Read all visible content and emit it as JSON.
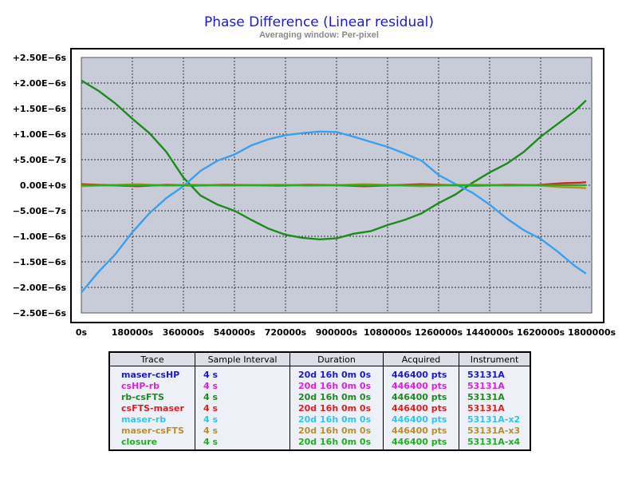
{
  "chart_data": {
    "type": "line",
    "title": "Phase Difference (Linear residual)",
    "subtitle": "Averaging window: Per-pixel",
    "xlabel": "",
    "ylabel": "",
    "xlim": [
      0,
      1800000
    ],
    "ylim": [
      -2.5e-06,
      2.5e-06
    ],
    "x_ticks": [
      0,
      180000,
      360000,
      540000,
      720000,
      900000,
      1080000,
      1260000,
      1440000,
      1620000,
      1800000
    ],
    "x_tick_labels": [
      "0s",
      "180000s",
      "360000s",
      "540000s",
      "720000s",
      "900000s",
      "1080000s",
      "1260000s",
      "1440000s",
      "1620000s",
      "1800000s"
    ],
    "y_ticks": [
      2.5e-06,
      2e-06,
      1.5e-06,
      1e-06,
      5e-07,
      0,
      -5e-07,
      -1e-06,
      -1.5e-06,
      -2e-06,
      -2.5e-06
    ],
    "y_tick_labels": [
      "+2.50E−6s",
      "+2.00E−6s",
      "+1.50E−6s",
      "+1.00E−6s",
      "+5.00E−7s",
      "0.00E+0s",
      "−5.00E−7s",
      "−1.00E−6s",
      "−1.50E−6s",
      "−2.00E−6s",
      "−2.50E−6s"
    ],
    "y_tick_colors": [
      "#000000",
      "#000000",
      "#000000",
      "#000000",
      "#000000",
      "#1a1ad0",
      "#000000",
      "#000000",
      "#000000",
      "#000000",
      "#000000"
    ],
    "grid": true,
    "plot_background": "#c8ccd8",
    "series": [
      {
        "name": "rb-csFTS",
        "color": "#1f8a1f",
        "x": [
          0,
          60000,
          120000,
          180000,
          240000,
          300000,
          360000,
          420000,
          480000,
          540000,
          600000,
          660000,
          720000,
          780000,
          840000,
          900000,
          960000,
          1020000,
          1080000,
          1140000,
          1200000,
          1260000,
          1320000,
          1380000,
          1440000,
          1500000,
          1560000,
          1620000,
          1680000,
          1740000,
          1780000
        ],
        "y": [
          2.05e-06,
          1.85e-06,
          1.6e-06,
          1.3e-06,
          1.02e-06,
          6.5e-07,
          1.5e-07,
          -2e-07,
          -3.8e-07,
          -5e-07,
          -6.8e-07,
          -8.5e-07,
          -9.7e-07,
          -1.03e-06,
          -1.06e-06,
          -1.04e-06,
          -9.5e-07,
          -9e-07,
          -7.8e-07,
          -6.8e-07,
          -5.5e-07,
          -3.5e-07,
          -1.8e-07,
          5e-08,
          2.5e-07,
          4.2e-07,
          6.5e-07,
          9.5e-07,
          1.2e-06,
          1.45e-06,
          1.66e-06
        ]
      },
      {
        "name": "maser-rb",
        "color": "#3aa0ee",
        "x": [
          0,
          60000,
          120000,
          180000,
          240000,
          300000,
          360000,
          420000,
          480000,
          540000,
          600000,
          660000,
          720000,
          780000,
          840000,
          900000,
          960000,
          1020000,
          1080000,
          1140000,
          1200000,
          1260000,
          1320000,
          1380000,
          1440000,
          1500000,
          1560000,
          1620000,
          1680000,
          1740000,
          1780000
        ],
        "y": [
          -2.1e-06,
          -1.7e-06,
          -1.35e-06,
          -9.2e-07,
          -5.5e-07,
          -2.5e-07,
          -2e-08,
          2.8e-07,
          4.8e-07,
          6e-07,
          7.8e-07,
          9e-07,
          9.8e-07,
          1.02e-06,
          1.05e-06,
          1.04e-06,
          9.5e-07,
          8.5e-07,
          7.5e-07,
          6.2e-07,
          4.8e-07,
          2e-07,
          2e-08,
          -1.5e-07,
          -3.8e-07,
          -6.5e-07,
          -8.8e-07,
          -1.05e-06,
          -1.3e-06,
          -1.58e-06,
          -1.73e-06
        ]
      },
      {
        "name": "csFTS-maser",
        "color": "#e02020",
        "x": [
          0,
          100000,
          200000,
          300000,
          400000,
          500000,
          600000,
          700000,
          800000,
          900000,
          1000000,
          1100000,
          1200000,
          1300000,
          1400000,
          1500000,
          1600000,
          1700000,
          1760000,
          1780000
        ],
        "y": [
          2e-08,
          0.0,
          -2e-08,
          1e-08,
          -1e-08,
          1e-08,
          0.0,
          -1e-08,
          1e-08,
          0.0,
          -2e-08,
          0.0,
          2e-08,
          0.0,
          -1e-08,
          1e-08,
          0.0,
          4e-08,
          5e-08,
          6e-08
        ]
      },
      {
        "name": "maser-csFTS",
        "color": "#b89030",
        "x": [
          0,
          100000,
          200000,
          300000,
          400000,
          500000,
          600000,
          700000,
          800000,
          900000,
          1000000,
          1100000,
          1200000,
          1300000,
          1400000,
          1500000,
          1600000,
          1700000,
          1760000,
          1780000
        ],
        "y": [
          -2e-08,
          0.0,
          2e-08,
          -1e-08,
          1e-08,
          -1e-08,
          0.0,
          1e-08,
          -1e-08,
          0.0,
          2e-08,
          0.0,
          -2e-08,
          0.0,
          1e-08,
          -1e-08,
          0.0,
          -4e-08,
          -5e-08,
          -6e-08
        ]
      },
      {
        "name": "closure",
        "color": "#22b022",
        "x": [
          0,
          200000,
          400000,
          600000,
          800000,
          1000000,
          1200000,
          1400000,
          1600000,
          1780000
        ],
        "y": [
          0,
          0,
          0,
          0,
          0,
          0,
          0,
          0,
          0,
          0
        ]
      }
    ]
  },
  "legend": {
    "headers": [
      "Trace",
      "Sample Interval",
      "Duration",
      "Acquired",
      "Instrument"
    ],
    "rows": [
      {
        "color": "#1a1ad0",
        "cells": [
          "maser-csHP",
          "4 s",
          "20d 16h 0m 0s",
          "446400 pts",
          "53131A"
        ]
      },
      {
        "color": "#e020e0",
        "cells": [
          "csHP-rb",
          "4 s",
          "20d 16h 0m 0s",
          "446400 pts",
          "53131A"
        ]
      },
      {
        "color": "#1f8a1f",
        "cells": [
          "rb-csFTS",
          "4 s",
          "20d 16h 0m 0s",
          "446400 pts",
          "53131A"
        ]
      },
      {
        "color": "#e02020",
        "cells": [
          "csFTS-maser",
          "4 s",
          "20d 16h 0m 0s",
          "446400 pts",
          "53131A"
        ]
      },
      {
        "color": "#30c8e8",
        "cells": [
          "maser-rb",
          "4 s",
          "20d 16h 0m 0s",
          "446400 pts",
          "53131A-x2"
        ]
      },
      {
        "color": "#b89030",
        "cells": [
          "maser-csFTS",
          "4 s",
          "20d 16h 0m 0s",
          "446400 pts",
          "53131A-x3"
        ]
      },
      {
        "color": "#22b022",
        "cells": [
          "closure",
          "4 s",
          "20d 16h 0m 0s",
          "446400 pts",
          "53131A-x4"
        ]
      }
    ]
  }
}
